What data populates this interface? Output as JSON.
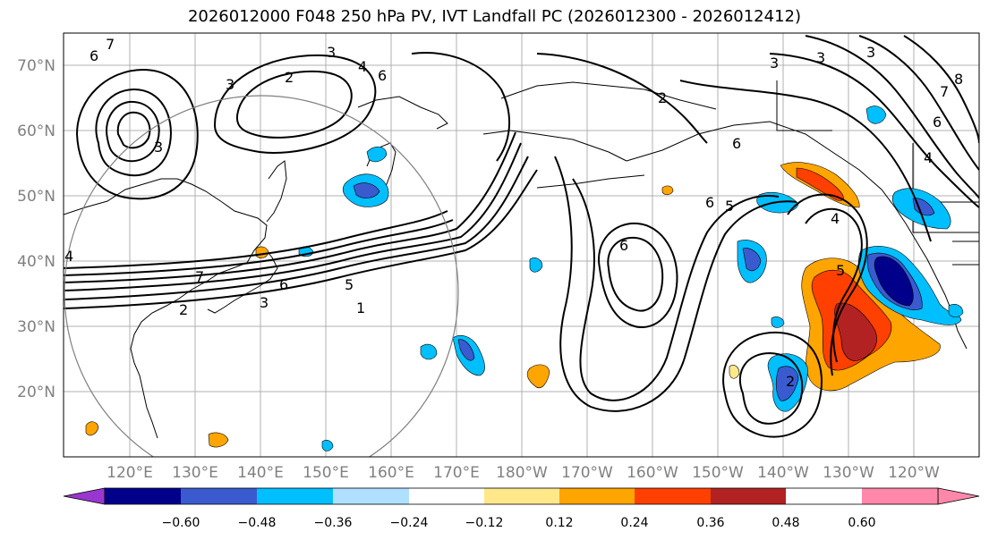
{
  "title": "2026012000 F048 250 hPa PV, IVT Landfall PC (2026012300 - 2026012412)",
  "lat_labels": [
    "70°N",
    "60°N",
    "50°N",
    "40°N",
    "30°N",
    "20°N"
  ],
  "lon_labels": [
    "120°E",
    "130°E",
    "140°E",
    "150°E",
    "160°E",
    "170°E",
    "180°W",
    "170°W",
    "160°W",
    "150°W",
    "140°W",
    "130°W",
    "120°W"
  ],
  "colorbar": {
    "ticks": [
      "−0.60",
      "−0.48",
      "−0.36",
      "−0.24",
      "−0.12",
      "0.12",
      "0.24",
      "0.36",
      "0.48",
      "0.60"
    ],
    "colors": [
      "#9a36d0",
      "#00008b",
      "#3a5bd0",
      "#00bfff",
      "#b0e0ff",
      "#ffffff",
      "#ffe88a",
      "#ffa500",
      "#ff4000",
      "#b22222",
      "#ff88aa"
    ]
  },
  "contour_labels": [
    {
      "text": "7"
    },
    {
      "text": "6"
    },
    {
      "text": "2"
    },
    {
      "text": "3"
    },
    {
      "text": "4"
    },
    {
      "text": "6"
    },
    {
      "text": "2"
    },
    {
      "text": "3"
    },
    {
      "text": "4"
    },
    {
      "text": "5"
    },
    {
      "text": "6"
    },
    {
      "text": "7"
    },
    {
      "text": "2"
    },
    {
      "text": "3"
    },
    {
      "text": "5"
    },
    {
      "text": "1"
    },
    {
      "text": "5"
    },
    {
      "text": "6"
    },
    {
      "text": "6"
    },
    {
      "text": "5"
    },
    {
      "text": "4"
    },
    {
      "text": "3"
    },
    {
      "text": "2"
    },
    {
      "text": "6"
    },
    {
      "text": "3"
    },
    {
      "text": "3"
    },
    {
      "text": "4"
    },
    {
      "text": "6"
    },
    {
      "text": "7"
    },
    {
      "text": "3"
    },
    {
      "text": "8"
    }
  ]
}
